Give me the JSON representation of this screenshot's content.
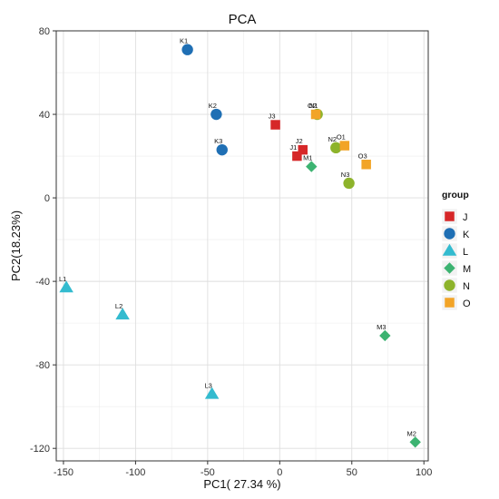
{
  "chart_data": {
    "type": "scatter",
    "title": "PCA",
    "xlabel": "PC1( 27.34 %)",
    "ylabel": "PC2(18.23%)",
    "xlim": [
      -155,
      103
    ],
    "ylim": [
      -126,
      80
    ],
    "xticks": [
      -150,
      -100,
      -50,
      0,
      50,
      100
    ],
    "yticks": [
      -120,
      -80,
      -40,
      0,
      40,
      80
    ],
    "grid": true,
    "legend": {
      "title": "group",
      "position": "right"
    },
    "series": [
      {
        "name": "J",
        "shape": "square",
        "color": "#d62728",
        "points": [
          {
            "label": "J3",
            "x": -3,
            "y": 35
          },
          {
            "label": "J2",
            "x": 16,
            "y": 23
          },
          {
            "label": "J1",
            "x": 12,
            "y": 20
          }
        ]
      },
      {
        "name": "K",
        "shape": "circle",
        "color": "#1f6fb4",
        "points": [
          {
            "label": "K1",
            "x": -64,
            "y": 71
          },
          {
            "label": "K2",
            "x": -44,
            "y": 40
          },
          {
            "label": "K3",
            "x": -40,
            "y": 23
          }
        ]
      },
      {
        "name": "L",
        "shape": "triangle",
        "color": "#33bbcf",
        "points": [
          {
            "label": "L1",
            "x": -148,
            "y": -43
          },
          {
            "label": "L2",
            "x": -109,
            "y": -56
          },
          {
            "label": "L3",
            "x": -47,
            "y": -94
          }
        ]
      },
      {
        "name": "M",
        "shape": "diamond",
        "color": "#3cb371",
        "points": [
          {
            "label": "M1",
            "x": 22,
            "y": 15
          },
          {
            "label": "M2",
            "x": 94,
            "y": -117
          },
          {
            "label": "M3",
            "x": 73,
            "y": -66
          }
        ]
      },
      {
        "name": "N",
        "shape": "circle",
        "color": "#8db32b",
        "points": [
          {
            "label": "N1",
            "x": 26,
            "y": 40
          },
          {
            "label": "N2",
            "x": 39,
            "y": 24
          },
          {
            "label": "N3",
            "x": 48,
            "y": 7
          }
        ]
      },
      {
        "name": "O",
        "shape": "square",
        "color": "#f2a427",
        "points": [
          {
            "label": "O2",
            "x": 25,
            "y": 40
          },
          {
            "label": "O1",
            "x": 45,
            "y": 25
          },
          {
            "label": "O3",
            "x": 60,
            "y": 16
          }
        ]
      }
    ]
  }
}
